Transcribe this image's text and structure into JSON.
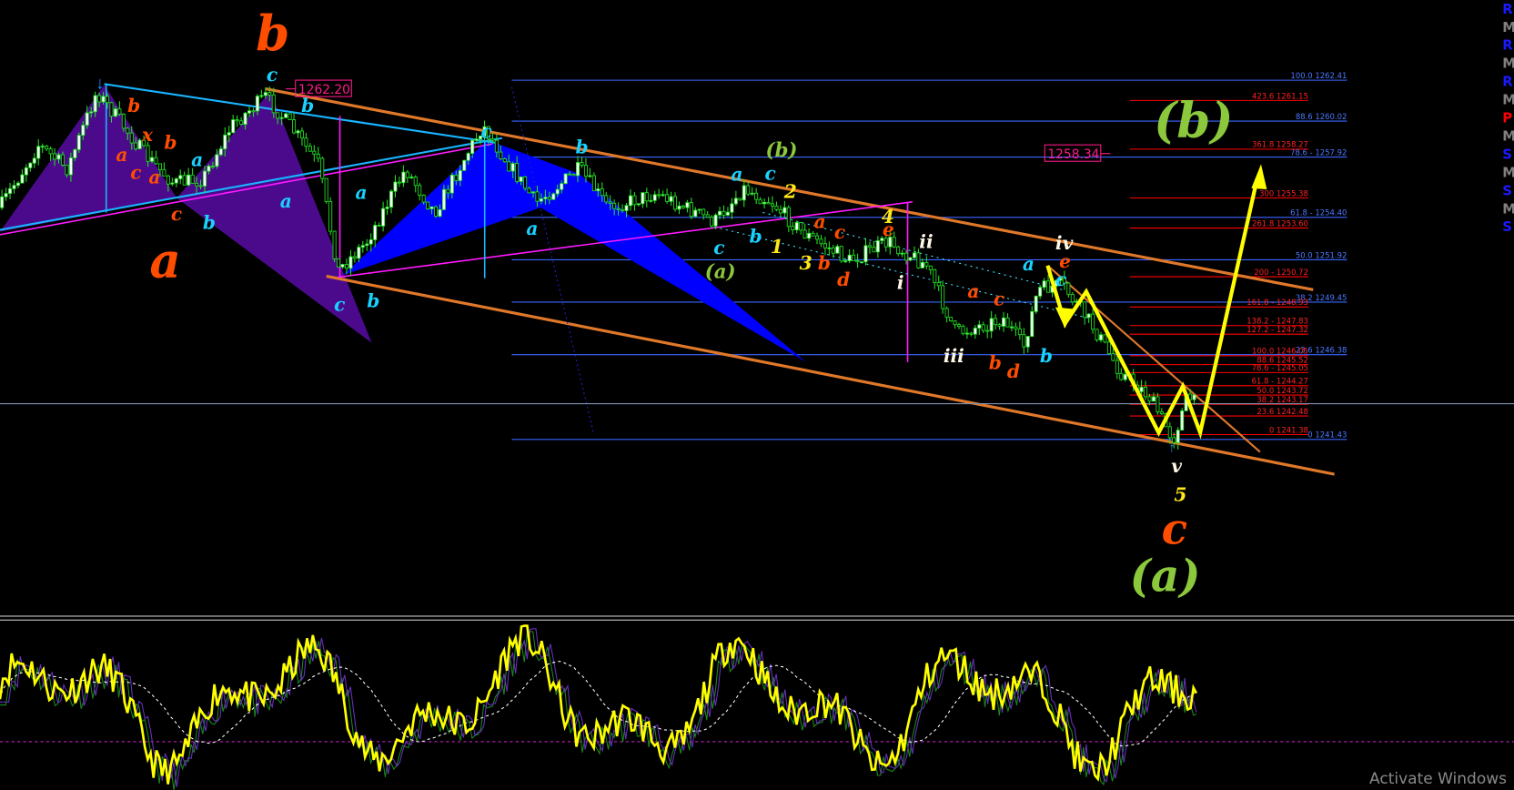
{
  "chart_data": {
    "type": "line",
    "title": "",
    "price_tags": [
      "1262.20",
      "1258.34"
    ],
    "current_price_line": true,
    "fib_retracement_blue": {
      "color": "#3a66ff",
      "levels": [
        {
          "label": "100.0 1262.41",
          "price": 1262.41
        },
        {
          "label": "88.6 1260.02",
          "price": 1260.02
        },
        {
          "label": "78.6 - 1257.92",
          "price": 1257.92
        },
        {
          "label": "61.8 - 1254.40",
          "price": 1254.4
        },
        {
          "label": "50.0 1251.92",
          "price": 1251.92
        },
        {
          "label": "38.2 1249.45",
          "price": 1249.45
        },
        {
          "label": "23.6 1246.38",
          "price": 1246.38
        },
        {
          "label": "0 1241.43",
          "price": 1241.43
        }
      ]
    },
    "fib_extension_red": {
      "color": "#ff0000",
      "levels": [
        {
          "label": "423.6 1261.15",
          "price": 1261.15
        },
        {
          "label": "361.8 1258.27",
          "price": 1258.27
        },
        {
          "label": "300 1255.38",
          "price": 1255.38
        },
        {
          "label": "261.8 1253.60",
          "price": 1253.6
        },
        {
          "label": "200 - 1250.72",
          "price": 1250.72
        },
        {
          "label": "161.8 - 1248.93",
          "price": 1248.93
        },
        {
          "label": "138.2 - 1247.83",
          "price": 1247.83
        },
        {
          "label": "127.2 - 1247.32",
          "price": 1247.32
        },
        {
          "label": "100.0 1246.05",
          "price": 1246.05
        },
        {
          "label": "88.6 1245.52",
          "price": 1245.52
        },
        {
          "label": "78.6 - 1245.05",
          "price": 1245.05
        },
        {
          "label": "61.8 - 1244.27",
          "price": 1244.27
        },
        {
          "label": "50.0 1243.72",
          "price": 1243.72
        },
        {
          "label": "38.2 1243.17",
          "price": 1243.17
        },
        {
          "label": "23.6 1242.48",
          "price": 1242.48
        },
        {
          "label": "0 1241.38",
          "price": 1241.38
        }
      ]
    }
  },
  "wave_labels": {
    "big": {
      "b": "b",
      "a": "a",
      "c": "c",
      "A": "(a)",
      "B": "(b)"
    },
    "minor_b": "(b)",
    "minor_a": "(a)",
    "cyan": [
      "c",
      "b",
      "a",
      "a",
      "b",
      "c",
      "b",
      "a",
      "a",
      "b",
      "c",
      "a",
      "c",
      "b",
      "c",
      "a",
      "c",
      "b"
    ],
    "orange": [
      "b",
      "x",
      "a",
      "c",
      "a",
      "b",
      "c",
      "a",
      "c",
      "b",
      "d",
      "e",
      "a",
      "c",
      "b",
      "d",
      "e"
    ],
    "yellow": [
      "2",
      "1",
      "3",
      "4",
      "5"
    ],
    "white": [
      "ii",
      "i",
      "iii",
      "iv",
      "v"
    ]
  },
  "pivot_labels": [
    {
      "text": "R",
      "color": "#1a1aff"
    },
    {
      "text": "M",
      "color": "#808080"
    },
    {
      "text": "R",
      "color": "#1a1aff"
    },
    {
      "text": "M",
      "color": "#808080"
    },
    {
      "text": "R",
      "color": "#1a1aff"
    },
    {
      "text": "M",
      "color": "#808080"
    },
    {
      "text": "P",
      "color": "#ff0000"
    },
    {
      "text": "M",
      "color": "#808080"
    },
    {
      "text": "S",
      "color": "#1a1aff"
    },
    {
      "text": "M",
      "color": "#808080"
    },
    {
      "text": "S",
      "color": "#1a1aff"
    },
    {
      "text": "M",
      "color": "#808080"
    },
    {
      "text": "S",
      "color": "#1a1aff"
    }
  ],
  "watermark": "Activate Windows"
}
